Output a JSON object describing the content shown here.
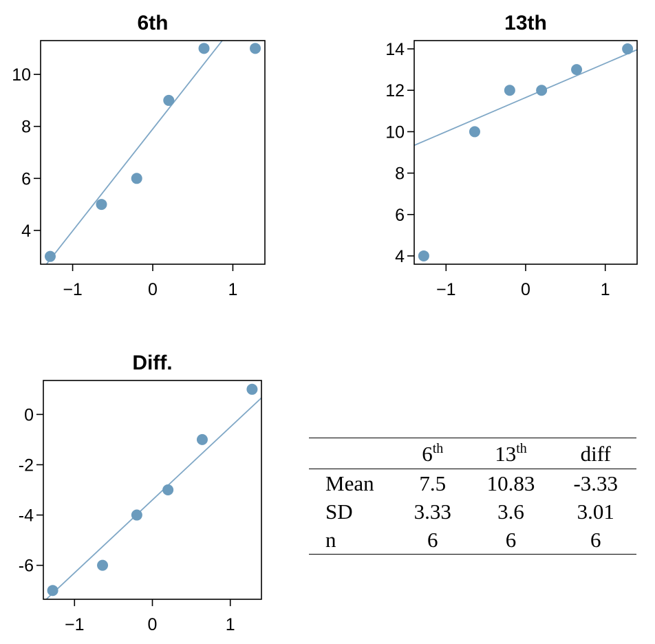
{
  "chart_data": [
    {
      "type": "scatter",
      "title": "6th",
      "xlabel": "",
      "ylabel": "",
      "xlim": [
        -1.4,
        1.4
      ],
      "ylim": [
        2.7,
        11.3
      ],
      "xticks": [
        -1,
        0,
        1
      ],
      "xtick_labels": [
        "−1",
        "0",
        "1"
      ],
      "yticks": [
        4,
        6,
        8,
        10
      ],
      "ytick_labels": [
        "4",
        "6",
        "8",
        "10"
      ],
      "grid": false,
      "points": [
        {
          "x": -1.28,
          "y": 3
        },
        {
          "x": -0.64,
          "y": 5
        },
        {
          "x": -0.2,
          "y": 6
        },
        {
          "x": 0.2,
          "y": 9
        },
        {
          "x": 0.64,
          "y": 11
        },
        {
          "x": 1.28,
          "y": 11
        }
      ],
      "reference_line": {
        "intercept": 7.9,
        "slope": 3.92
      }
    },
    {
      "type": "scatter",
      "title": "13th",
      "xlabel": "",
      "ylabel": "",
      "xlim": [
        -1.4,
        1.4
      ],
      "ylim": [
        3.6,
        14.4
      ],
      "xticks": [
        -1,
        0,
        1
      ],
      "xtick_labels": [
        "−1",
        "0",
        "1"
      ],
      "yticks": [
        4,
        6,
        8,
        10,
        12,
        14
      ],
      "ytick_labels": [
        "4",
        "6",
        "8",
        "10",
        "12",
        "14"
      ],
      "grid": false,
      "points": [
        {
          "x": -1.28,
          "y": 4
        },
        {
          "x": -0.64,
          "y": 10
        },
        {
          "x": -0.2,
          "y": 12
        },
        {
          "x": 0.2,
          "y": 12
        },
        {
          "x": 0.64,
          "y": 13
        },
        {
          "x": 1.28,
          "y": 14
        }
      ],
      "reference_line": {
        "intercept": 11.65,
        "slope": 1.65
      }
    },
    {
      "type": "scatter",
      "title": "Diff.",
      "xlabel": "",
      "ylabel": "",
      "xlim": [
        -1.4,
        1.4
      ],
      "ylim": [
        -7.35,
        1.35
      ],
      "xticks": [
        -1,
        0,
        1
      ],
      "xtick_labels": [
        "−1",
        "0",
        "1"
      ],
      "yticks": [
        -6,
        -4,
        -2,
        0
      ],
      "ytick_labels": [
        "-6",
        "-4",
        "-2",
        "0"
      ],
      "grid": false,
      "points": [
        {
          "x": -1.28,
          "y": -7
        },
        {
          "x": -0.64,
          "y": -6
        },
        {
          "x": -0.2,
          "y": -4
        },
        {
          "x": 0.2,
          "y": -3
        },
        {
          "x": 0.64,
          "y": -1
        },
        {
          "x": 1.28,
          "y": 1
        }
      ],
      "reference_line": {
        "intercept": -3.4,
        "slope": 2.9
      }
    }
  ],
  "table": {
    "columns": [
      {
        "base": "6",
        "sup": "th"
      },
      {
        "base": "13",
        "sup": "th"
      },
      {
        "base": "diff",
        "sup": ""
      }
    ],
    "rows": [
      {
        "label": "Mean",
        "values": [
          "7.5",
          "10.83",
          "-3.33"
        ]
      },
      {
        "label": "SD",
        "values": [
          "3.33",
          "3.6",
          "3.01"
        ]
      },
      {
        "label": "n",
        "values": [
          "6",
          "6",
          "6"
        ]
      }
    ]
  },
  "colors": {
    "point": "#6b9bbd",
    "line": "#7fa7c6"
  }
}
